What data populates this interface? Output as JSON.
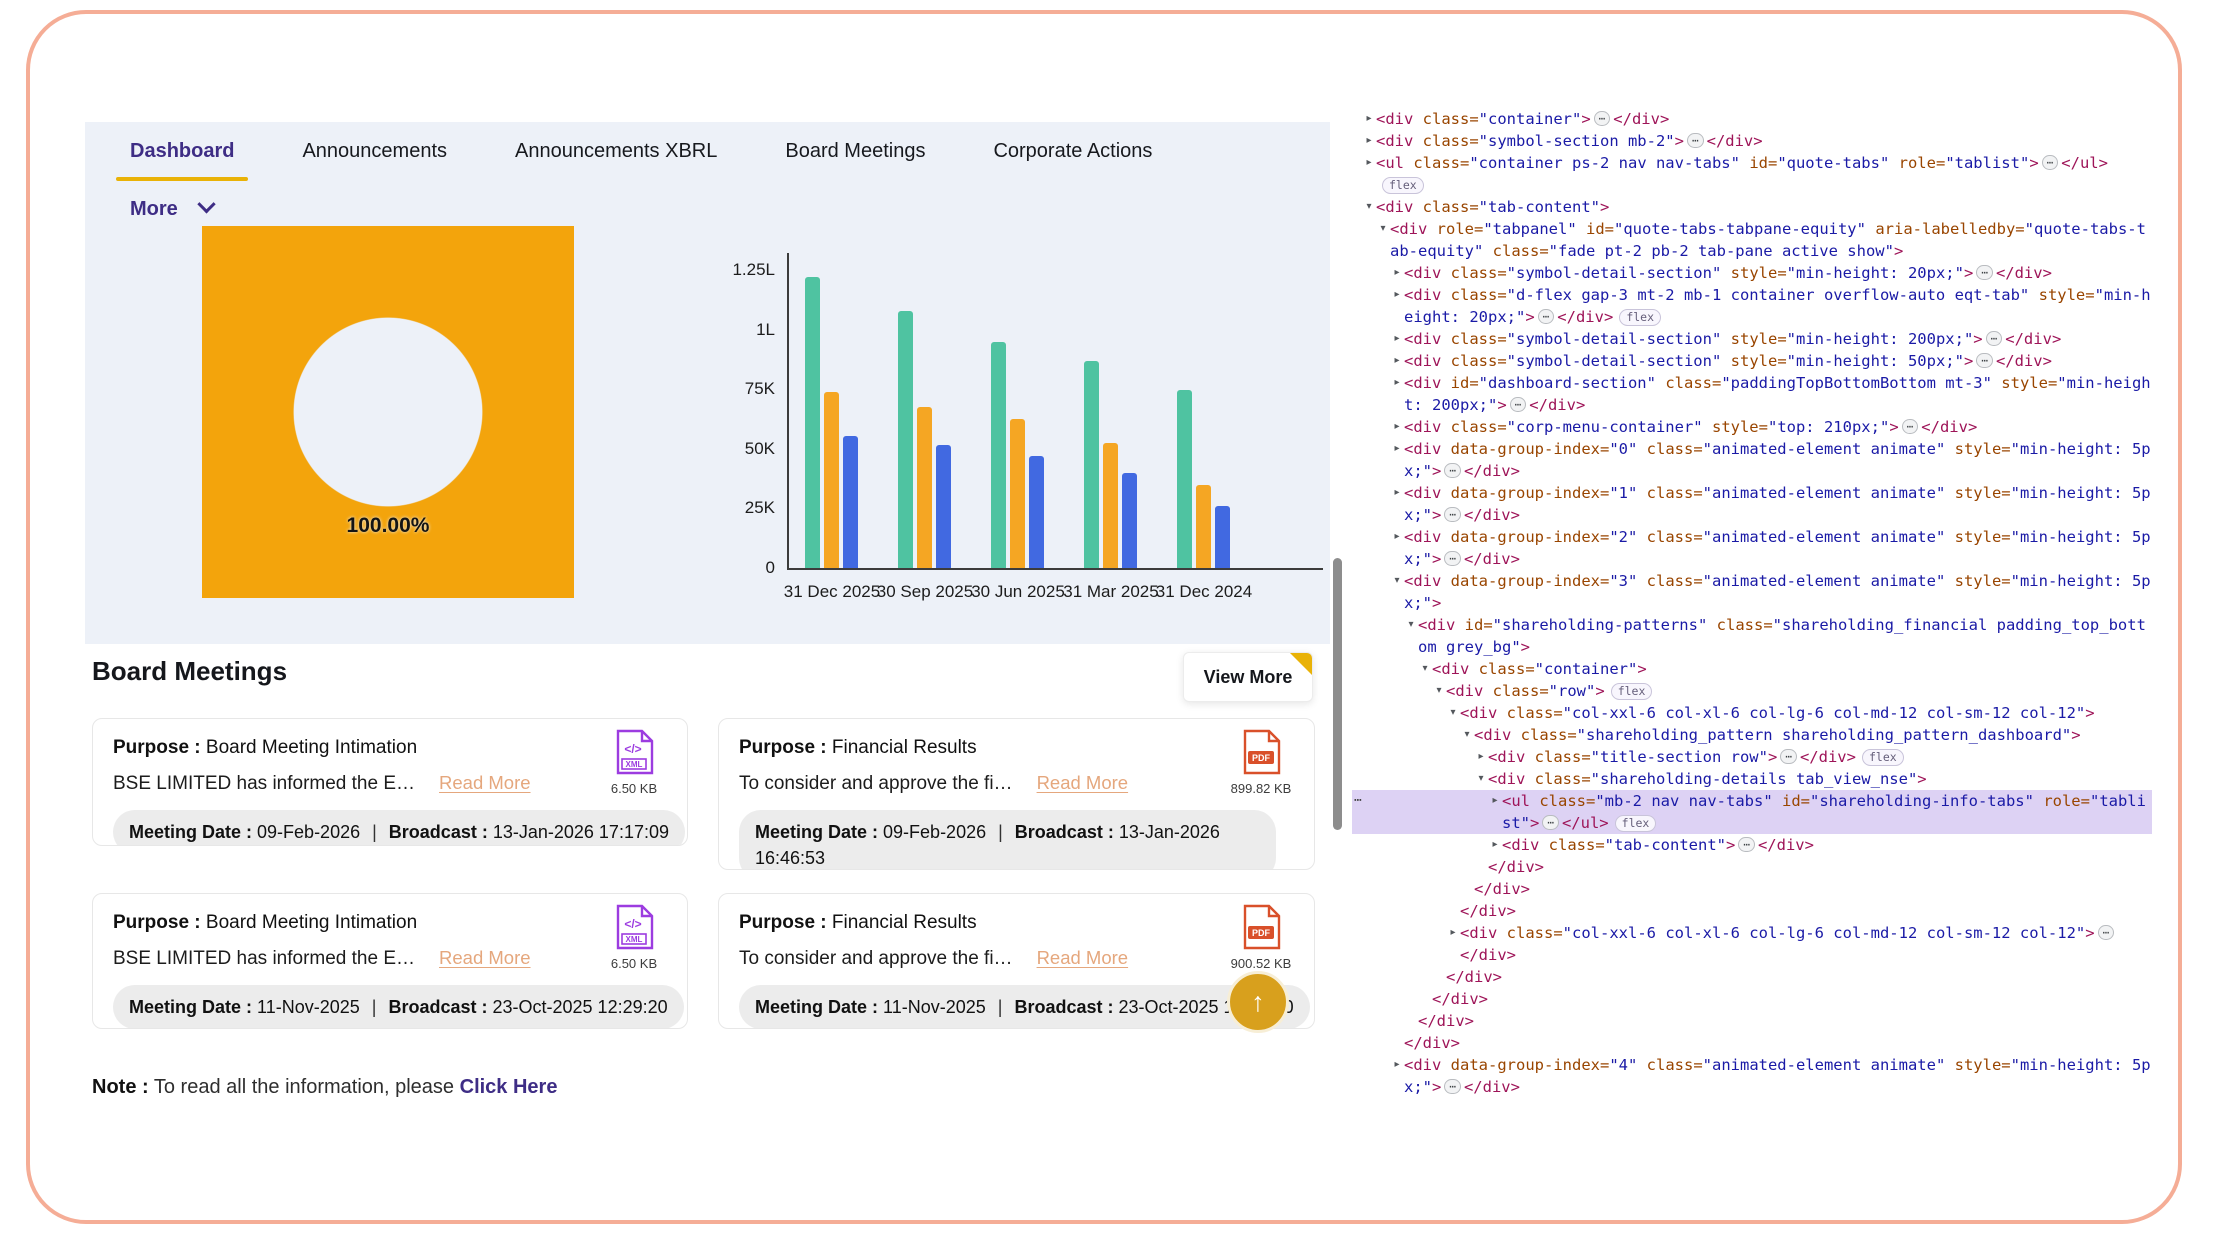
{
  "colors": {
    "accent_purple": "#3e2d85",
    "accent_gold": "#e9b207",
    "donut_orange": "#f3a40c",
    "bar_teal": "#4fc3a1",
    "bar_orange": "#f5a623",
    "bar_blue": "#4169e1",
    "readmore_salmon": "#e5a77d",
    "frame_salmon": "#f5ad96",
    "panel_bg": "#edf1f8"
  },
  "tabs": [
    {
      "label": "Dashboard",
      "active": true
    },
    {
      "label": "Announcements",
      "active": false
    },
    {
      "label": "Announcements XBRL",
      "active": false
    },
    {
      "label": "Board Meetings",
      "active": false
    },
    {
      "label": "Corporate Actions",
      "active": false
    }
  ],
  "more_label": "More",
  "chart_data": [
    {
      "type": "pie",
      "subtype": "donut",
      "labels": [
        "100.00%"
      ],
      "values": [
        100
      ],
      "colors": [
        "#f3a40c"
      ],
      "title": ""
    },
    {
      "type": "bar",
      "categories": [
        "31 Dec 2025",
        "30 Sep 2025",
        "30 Jun 2025",
        "31 Mar 2025",
        "31 Dec 2024"
      ],
      "series": [
        {
          "name": "series-teal",
          "color": "#4fc3a1",
          "values": [
            122000,
            108000,
            95000,
            87000,
            74500
          ]
        },
        {
          "name": "series-orange",
          "color": "#f5a623",
          "values": [
            74000,
            67500,
            62500,
            52500,
            35000
          ]
        },
        {
          "name": "series-blue",
          "color": "#4169e1",
          "values": [
            55500,
            51500,
            47000,
            40000,
            26000
          ]
        }
      ],
      "ylim": [
        0,
        125000
      ],
      "yticks": [
        "1.25L",
        "1L",
        "75K",
        "50K",
        "25K",
        "0"
      ],
      "ytick_values": [
        125000,
        100000,
        75000,
        50000,
        25000,
        0
      ],
      "grid": false,
      "legend": "none"
    }
  ],
  "board_meetings": {
    "title": "Board Meetings",
    "view_more": "View More",
    "labels": {
      "purpose": "Purpose :",
      "meeting": "Meeting Date :",
      "broadcast": "Broadcast :",
      "separator": "|"
    },
    "cards": [
      {
        "purpose": "Board Meeting Intimation",
        "desc": "BSE LIMITED has informed the E…",
        "read_more": "Read More",
        "file_type": "XML",
        "file_size": "6.50 KB",
        "meeting_date": "09-Feb-2026",
        "broadcast": "13-Jan-2026 17:17:09"
      },
      {
        "purpose": "Financial Results",
        "desc": "To consider and approve the fi…",
        "read_more": "Read More",
        "file_type": "PDF",
        "file_size": "899.82 KB",
        "meeting_date": "09-Feb-2026",
        "broadcast": "13-Jan-2026 16:46:53"
      },
      {
        "purpose": "Board Meeting Intimation",
        "desc": "BSE LIMITED has informed the E…",
        "read_more": "Read More",
        "file_type": "XML",
        "file_size": "6.50 KB",
        "meeting_date": "11-Nov-2025",
        "broadcast": "23-Oct-2025 12:29:20"
      },
      {
        "purpose": "Financial Results",
        "desc": "To consider and approve the fi…",
        "read_more": "Read More",
        "file_type": "PDF",
        "file_size": "900.52 KB",
        "meeting_date": "11-Nov-2025",
        "broadcast": "23-Oct-2025 12:29:20"
      }
    ],
    "note_label": "Note :",
    "note_text": "To read all the information, please",
    "note_link": "Click Here"
  },
  "scroll_top_icon": "↑",
  "devtools": {
    "lines": [
      {
        "ind": 0,
        "a": "c",
        "t": "<div class=\"container\">…</div>"
      },
      {
        "ind": 0,
        "a": "c",
        "t": "<div class=\"symbol-section mb-2\">…</div>"
      },
      {
        "ind": 0,
        "a": "c",
        "t": "<ul class=\"container ps-2 nav nav-tabs\" id=\"quote-tabs\" role=\"tablist\">…</ul>"
      },
      {
        "ind": 0,
        "a": "",
        "badgeOnly": "flex"
      },
      {
        "ind": 0,
        "a": "e",
        "t": "<div class=\"tab-content\">"
      },
      {
        "ind": 1,
        "a": "e",
        "t": "<div role=\"tabpanel\" id=\"quote-tabs-tabpane-equity\" aria-labelledby=\"quote-tabs-tab-equity\" class=\"fade pt-2 pb-2 tab-pane active show\">"
      },
      {
        "ind": 2,
        "a": "c",
        "t": "<div class=\"symbol-detail-section\" style=\"min-height: 20px;\">…</div>"
      },
      {
        "ind": 2,
        "a": "c",
        "t": "<div class=\"d-flex gap-3 mt-2 mb-1 container overflow-auto eqt-tab\" style=\"min-height: 20px;\">…</div>",
        "badge": "flex"
      },
      {
        "ind": 2,
        "a": "c",
        "t": "<div class=\"symbol-detail-section\" style=\"min-height: 200px;\">…</div>"
      },
      {
        "ind": 2,
        "a": "c",
        "t": "<div class=\"symbol-detail-section\" style=\"min-height: 50px;\">…</div>"
      },
      {
        "ind": 2,
        "a": "c",
        "t": "<div id=\"dashboard-section\" class=\"paddingTopBottomBottom mt-3\" style=\"min-height: 200px;\">…</div>"
      },
      {
        "ind": 2,
        "a": "c",
        "t": "<div class=\"corp-menu-container\" style=\"top: 210px;\">…</div>"
      },
      {
        "ind": 2,
        "a": "c",
        "t": "<div data-group-index=\"0\" class=\"animated-element animate\" style=\"min-height: 5px;\">…</div>"
      },
      {
        "ind": 2,
        "a": "c",
        "t": "<div data-group-index=\"1\" class=\"animated-element animate\" style=\"min-height: 5px;\">…</div>"
      },
      {
        "ind": 2,
        "a": "c",
        "t": "<div data-group-index=\"2\" class=\"animated-element animate\" style=\"min-height: 5px;\">…</div>"
      },
      {
        "ind": 2,
        "a": "e",
        "t": "<div data-group-index=\"3\" class=\"animated-element animate\" style=\"min-height: 5px;\">"
      },
      {
        "ind": 3,
        "a": "e",
        "t": "<div id=\"shareholding-patterns\" class=\"shareholding_financial padding_top_bottom grey_bg\">"
      },
      {
        "ind": 4,
        "a": "e",
        "t": "<div class=\"container\">"
      },
      {
        "ind": 5,
        "a": "e",
        "t": "<div class=\"row\">",
        "badge": "flex"
      },
      {
        "ind": 6,
        "a": "e",
        "t": "<div class=\"col-xxl-6 col-xl-6 col-lg-6 col-md-12 col-sm-12 col-12\">"
      },
      {
        "ind": 7,
        "a": "e",
        "t": "<div class=\"shareholding_pattern shareholding_pattern_dashboard\">"
      },
      {
        "ind": 8,
        "a": "c",
        "t": "<div class=\"title-section row\">…</div>",
        "badge": "flex"
      },
      {
        "ind": 8,
        "a": "e",
        "t": "<div class=\"shareholding-details tab_view_nse\">"
      },
      {
        "ind": 9,
        "a": "c",
        "t": "<ul class=\"mb-2 nav nav-tabs\" id=\"shareholding-info-tabs\" role=\"tablist\">…</ul>",
        "badge": "flex",
        "sel": true,
        "gutter": true
      },
      {
        "ind": 9,
        "a": "c",
        "t": "<div class=\"tab-content\">…</div>"
      },
      {
        "ind": 8,
        "a": "",
        "t": "</div>"
      },
      {
        "ind": 7,
        "a": "",
        "t": "</div>"
      },
      {
        "ind": 6,
        "a": "",
        "t": "</div>"
      },
      {
        "ind": 6,
        "a": "c",
        "t": "<div class=\"col-xxl-6 col-xl-6 col-lg-6 col-md-12 col-sm-12 col-12\">…"
      },
      {
        "ind": 6,
        "a": "",
        "t": "</div>"
      },
      {
        "ind": 5,
        "a": "",
        "t": "</div>"
      },
      {
        "ind": 4,
        "a": "",
        "t": "</div>"
      },
      {
        "ind": 3,
        "a": "",
        "t": "</div>"
      },
      {
        "ind": 2,
        "a": "",
        "t": "</div>"
      },
      {
        "ind": 2,
        "a": "c",
        "t": "<div data-group-index=\"4\" class=\"animated-element animate\" style=\"min-height: 5px;\">…</div>"
      }
    ]
  }
}
